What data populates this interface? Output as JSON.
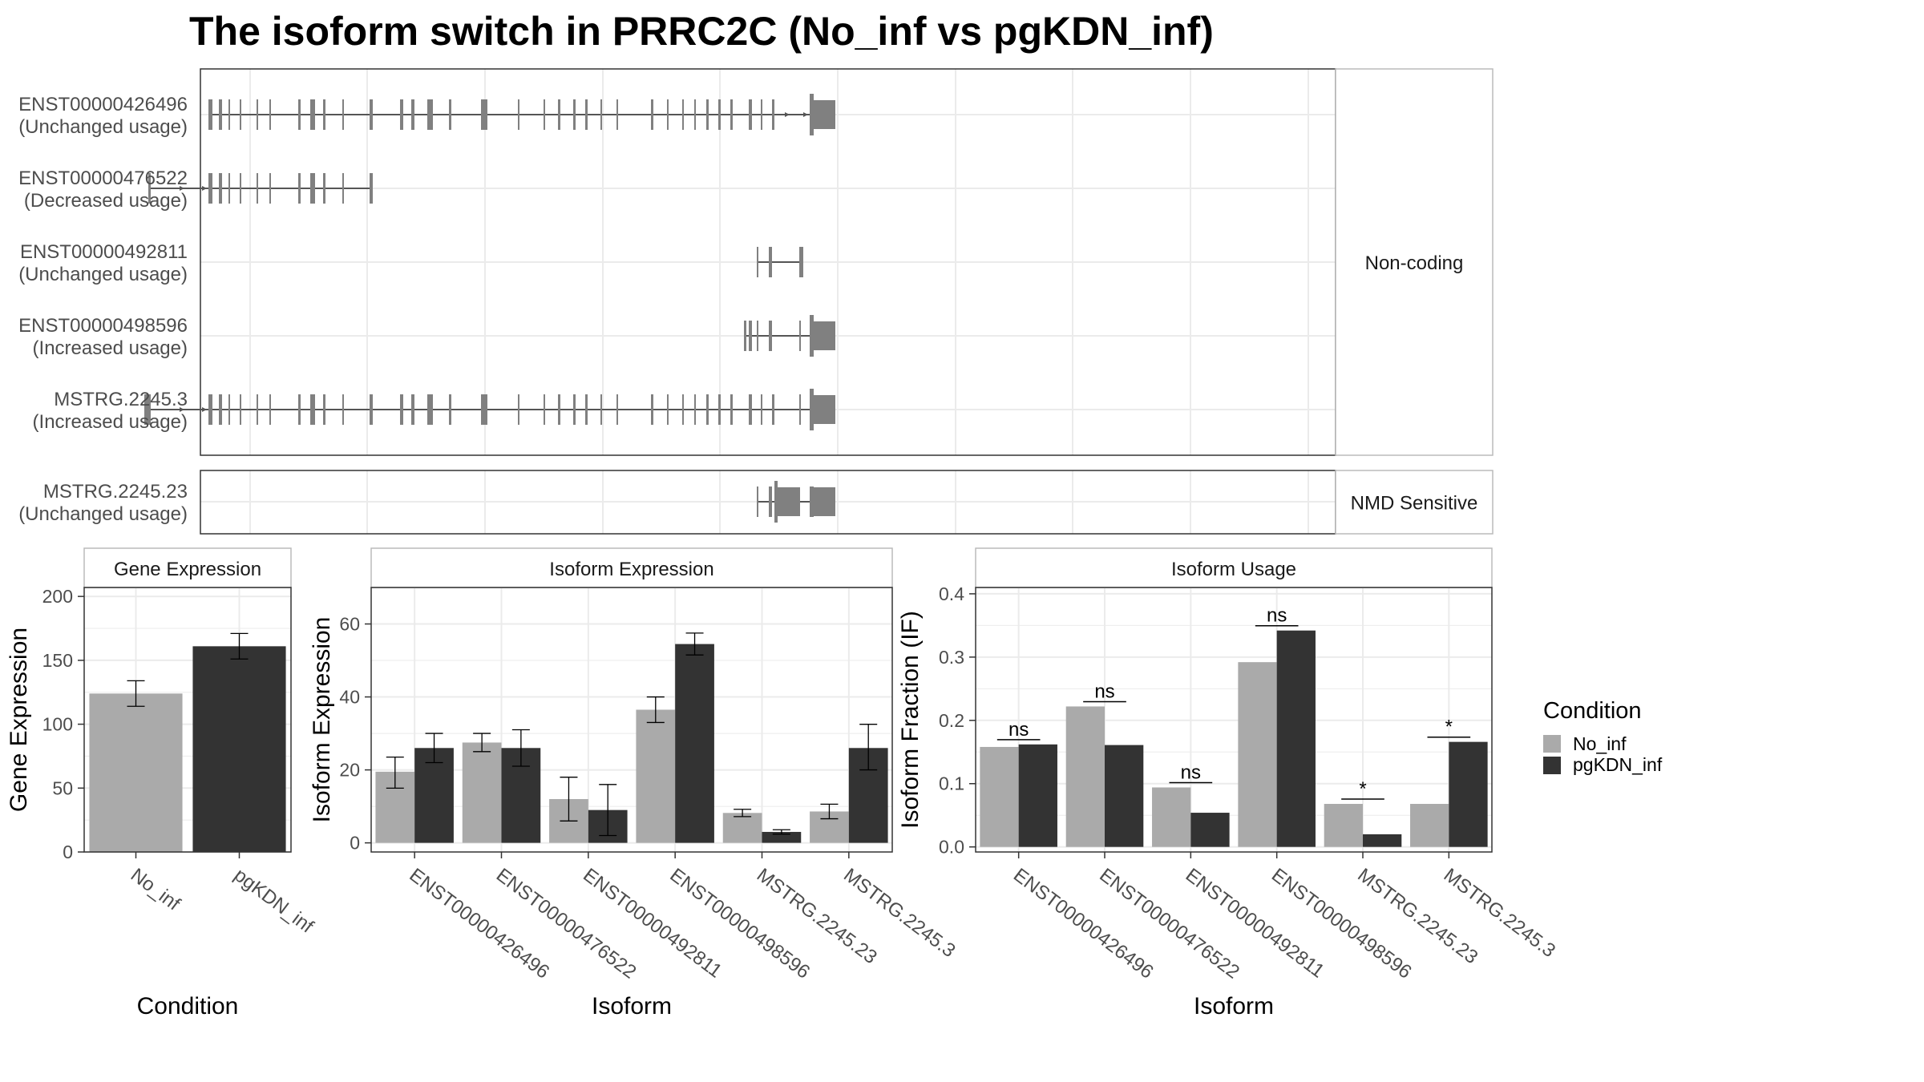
{
  "title": "The isoform switch in PRRC2C (No_inf vs pgKDN_inf)",
  "colors": {
    "no_inf": "#aaaaaa",
    "pgkdn_inf": "#333333",
    "exon": "#808080",
    "intron": "#555555",
    "grid": "#ebebeb",
    "panel_border": "#333333",
    "strip_border": "#bbbbbb"
  },
  "structure": {
    "groups": [
      {
        "label": "Non-coding",
        "isoforms": [
          {
            "id": "ENST00000426496",
            "usage": "(Unchanged usage)",
            "exons": [
              [
                260,
                262
              ],
              [
                262,
                265
              ],
              [
                273,
                277
              ],
              [
                285,
                287
              ],
              [
                299,
                301
              ],
              [
                320,
                322
              ],
              [
                336,
                338
              ],
              [
                372,
                375
              ],
              [
                387,
                393
              ],
              [
                403,
                406
              ],
              [
                427,
                429
              ],
              [
                461,
                465
              ],
              [
                499,
                503
              ],
              [
                513,
                517
              ],
              [
                533,
                540
              ],
              [
                560,
                563
              ],
              [
                600,
                608
              ],
              [
                646,
                648
              ],
              [
                678,
                680
              ],
              [
                696,
                699
              ],
              [
                715,
                718
              ],
              [
                730,
                733
              ],
              [
                749,
                751
              ],
              [
                769,
                771
              ],
              [
                812,
                815
              ],
              [
                832,
                834
              ],
              [
                851,
                853
              ],
              [
                866,
                868
              ],
              [
                881,
                884
              ],
              [
                896,
                899
              ],
              [
                911,
                914
              ],
              [
                934,
                938
              ],
              [
                949,
                951
              ],
              [
                963,
                966
              ],
              [
                1010,
                1015
              ],
              [
                1015,
                1042
              ]
            ],
            "thick": [
              [
                1015,
                1042
              ]
            ],
            "intron_arrows": [
              985,
              1008
            ]
          },
          {
            "id": "ENST00000476522",
            "usage": "(Decreased usage)",
            "exons": [
              [
                185,
                188
              ],
              [
                260,
                262
              ],
              [
                262,
                265
              ],
              [
                273,
                277
              ],
              [
                285,
                287
              ],
              [
                299,
                301
              ],
              [
                320,
                322
              ],
              [
                336,
                338
              ],
              [
                372,
                375
              ],
              [
                387,
                393
              ],
              [
                403,
                406
              ],
              [
                427,
                429
              ],
              [
                461,
                465
              ]
            ],
            "thick": [],
            "intron_arrows": [
              230,
              258
            ]
          },
          {
            "id": "ENST00000492811",
            "usage": "(Unchanged usage)",
            "exons": [
              [
                944,
                946
              ],
              [
                959,
                963
              ],
              [
                997,
                1002
              ]
            ],
            "thick": [],
            "intron_arrows": []
          },
          {
            "id": "ENST00000498596",
            "usage": "(Increased usage)",
            "exons": [
              [
                928,
                931
              ],
              [
                934,
                938
              ],
              [
                944,
                946
              ],
              [
                959,
                963
              ],
              [
                997,
                999
              ],
              [
                1010,
                1015
              ],
              [
                1015,
                1042
              ]
            ],
            "thick": [
              [
                1015,
                1042
              ]
            ],
            "intron_arrows": []
          },
          {
            "id": "MSTRG.2245.3",
            "usage": "(Increased usage)",
            "exons": [
              [
                180,
                188
              ],
              [
                260,
                262
              ],
              [
                262,
                265
              ],
              [
                273,
                277
              ],
              [
                285,
                287
              ],
              [
                299,
                301
              ],
              [
                320,
                322
              ],
              [
                336,
                338
              ],
              [
                372,
                375
              ],
              [
                387,
                393
              ],
              [
                403,
                406
              ],
              [
                427,
                429
              ],
              [
                461,
                465
              ],
              [
                499,
                503
              ],
              [
                513,
                517
              ],
              [
                533,
                540
              ],
              [
                560,
                563
              ],
              [
                600,
                608
              ],
              [
                646,
                648
              ],
              [
                678,
                680
              ],
              [
                696,
                699
              ],
              [
                715,
                718
              ],
              [
                730,
                733
              ],
              [
                749,
                751
              ],
              [
                769,
                771
              ],
              [
                812,
                815
              ],
              [
                832,
                834
              ],
              [
                851,
                853
              ],
              [
                866,
                868
              ],
              [
                881,
                884
              ],
              [
                896,
                899
              ],
              [
                911,
                914
              ],
              [
                934,
                938
              ],
              [
                949,
                951
              ],
              [
                963,
                966
              ],
              [
                997,
                999
              ],
              [
                1010,
                1015
              ],
              [
                1015,
                1042
              ]
            ],
            "thick": [
              [
                1015,
                1042
              ]
            ],
            "intron_arrows": [
              230,
              258
            ]
          }
        ]
      },
      {
        "label": "NMD Sensitive",
        "isoforms": [
          {
            "id": "MSTRG.2245.23",
            "usage": "(Unchanged usage)",
            "exons": [
              [
                944,
                946
              ],
              [
                959,
                963
              ],
              [
                966,
                970
              ],
              [
                970,
                977
              ],
              [
                977,
                998
              ],
              [
                1010,
                1015
              ],
              [
                1015,
                1042
              ]
            ],
            "thick": [
              [
                970,
                977
              ],
              [
                977,
                998
              ],
              [
                1015,
                1042
              ]
            ],
            "intron_arrows": []
          }
        ]
      }
    ]
  },
  "chart_data": [
    {
      "type": "bar",
      "title": "Gene Expression",
      "xlabel": "Condition",
      "ylabel": "Gene Expression",
      "categories": [
        "No_inf",
        "pgKDN_inf"
      ],
      "values": [
        124,
        161
      ],
      "errors": [
        [
          114,
          134
        ],
        [
          151,
          171
        ]
      ],
      "ylim": [
        0,
        207
      ],
      "yticks": [
        0,
        50,
        100,
        150,
        200
      ],
      "grid": true
    },
    {
      "type": "bar",
      "title": "Isoform Expression",
      "xlabel": "Isoform",
      "ylabel": "Isoform Expression",
      "categories": [
        "ENST00000426496",
        "ENST00000476522",
        "ENST00000492811",
        "ENST00000498596",
        "MSTRG.2245.23",
        "MSTRG.2245.3"
      ],
      "series": [
        {
          "name": "No_inf",
          "values": [
            19.5,
            27.5,
            12,
            36.5,
            8.2,
            8.6
          ],
          "errors": [
            [
              15,
              23.5
            ],
            [
              25,
              30
            ],
            [
              6,
              18
            ],
            [
              33,
              40
            ],
            [
              7.2,
              9.2
            ],
            [
              6.6,
              10.6
            ]
          ]
        },
        {
          "name": "pgKDN_inf",
          "values": [
            26,
            26,
            9,
            54.5,
            3,
            26
          ],
          "errors": [
            [
              22,
              30
            ],
            [
              21,
              31
            ],
            [
              2,
              16
            ],
            [
              51.5,
              57.5
            ],
            [
              2.4,
              3.6
            ],
            [
              20,
              32.5
            ]
          ]
        }
      ],
      "ylim": [
        -2.5,
        70
      ],
      "yticks": [
        0,
        20,
        40,
        60
      ],
      "grid": true
    },
    {
      "type": "bar",
      "title": "Isoform Usage",
      "xlabel": "Isoform",
      "ylabel": "Isoform Fraction (IF)",
      "categories": [
        "ENST00000426496",
        "ENST00000476522",
        "ENST00000492811",
        "ENST00000498596",
        "MSTRG.2245.23",
        "MSTRG.2245.3"
      ],
      "series": [
        {
          "name": "No_inf",
          "values": [
            0.158,
            0.222,
            0.094,
            0.292,
            0.068,
            0.068
          ]
        },
        {
          "name": "pgKDN_inf",
          "values": [
            0.162,
            0.161,
            0.054,
            0.342,
            0.02,
            0.166
          ]
        }
      ],
      "significance": [
        "ns",
        "ns",
        "ns",
        "ns",
        "*",
        "*"
      ],
      "ylim": [
        -0.008,
        0.41
      ],
      "yticks": [
        0.0,
        0.1,
        0.2,
        0.3,
        0.4
      ],
      "grid": true
    }
  ],
  "legend": {
    "title": "Condition",
    "entries": [
      "No_inf",
      "pgKDN_inf"
    ],
    "placement": "right"
  }
}
